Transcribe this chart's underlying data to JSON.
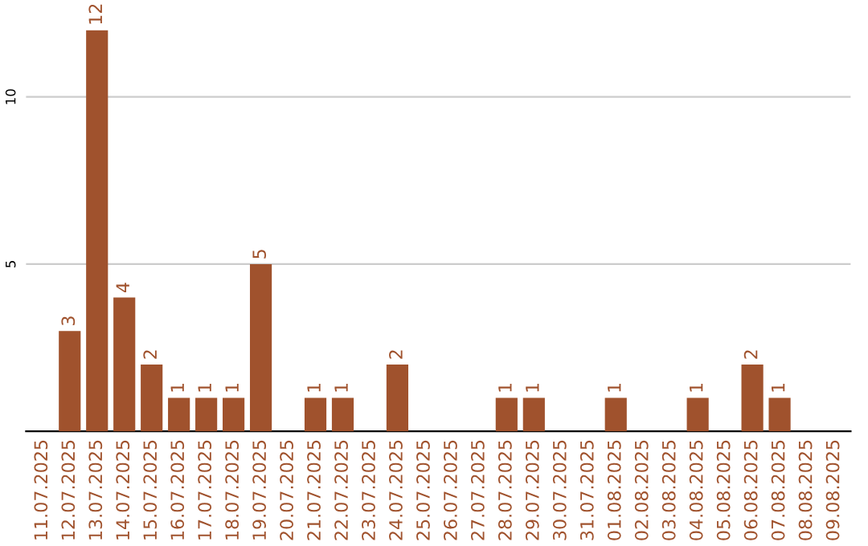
{
  "chart_data": {
    "type": "bar",
    "categories": [
      "11.07.2025",
      "12.07.2025",
      "13.07.2025",
      "14.07.2025",
      "15.07.2025",
      "16.07.2025",
      "17.07.2025",
      "18.07.2025",
      "19.07.2025",
      "20.07.2025",
      "21.07.2025",
      "22.07.2025",
      "23.07.2025",
      "24.07.2025",
      "25.07.2025",
      "26.07.2025",
      "27.07.2025",
      "28.07.2025",
      "29.07.2025",
      "30.07.2025",
      "31.07.2025",
      "01.08.2025",
      "02.08.2025",
      "03.08.2025",
      "04.08.2025",
      "05.08.2025",
      "06.08.2025",
      "07.08.2025",
      "08.08.2025",
      "09.08.2025"
    ],
    "values": [
      0,
      3,
      12,
      4,
      2,
      1,
      1,
      1,
      5,
      0,
      1,
      1,
      0,
      2,
      0,
      0,
      0,
      1,
      1,
      0,
      0,
      1,
      0,
      0,
      1,
      0,
      2,
      1,
      0,
      0
    ],
    "value_labels": [
      null,
      "3",
      "12",
      "4",
      "2",
      "1",
      "1",
      "1",
      "5",
      null,
      "1",
      "1",
      null,
      "2",
      null,
      null,
      null,
      "1",
      "1",
      null,
      null,
      "1",
      null,
      null,
      "1",
      null,
      "2",
      "1",
      null,
      null
    ],
    "color": "#a0522d",
    "ylim": [
      0,
      12
    ],
    "yticks": [
      5,
      10
    ],
    "grid": "y"
  }
}
